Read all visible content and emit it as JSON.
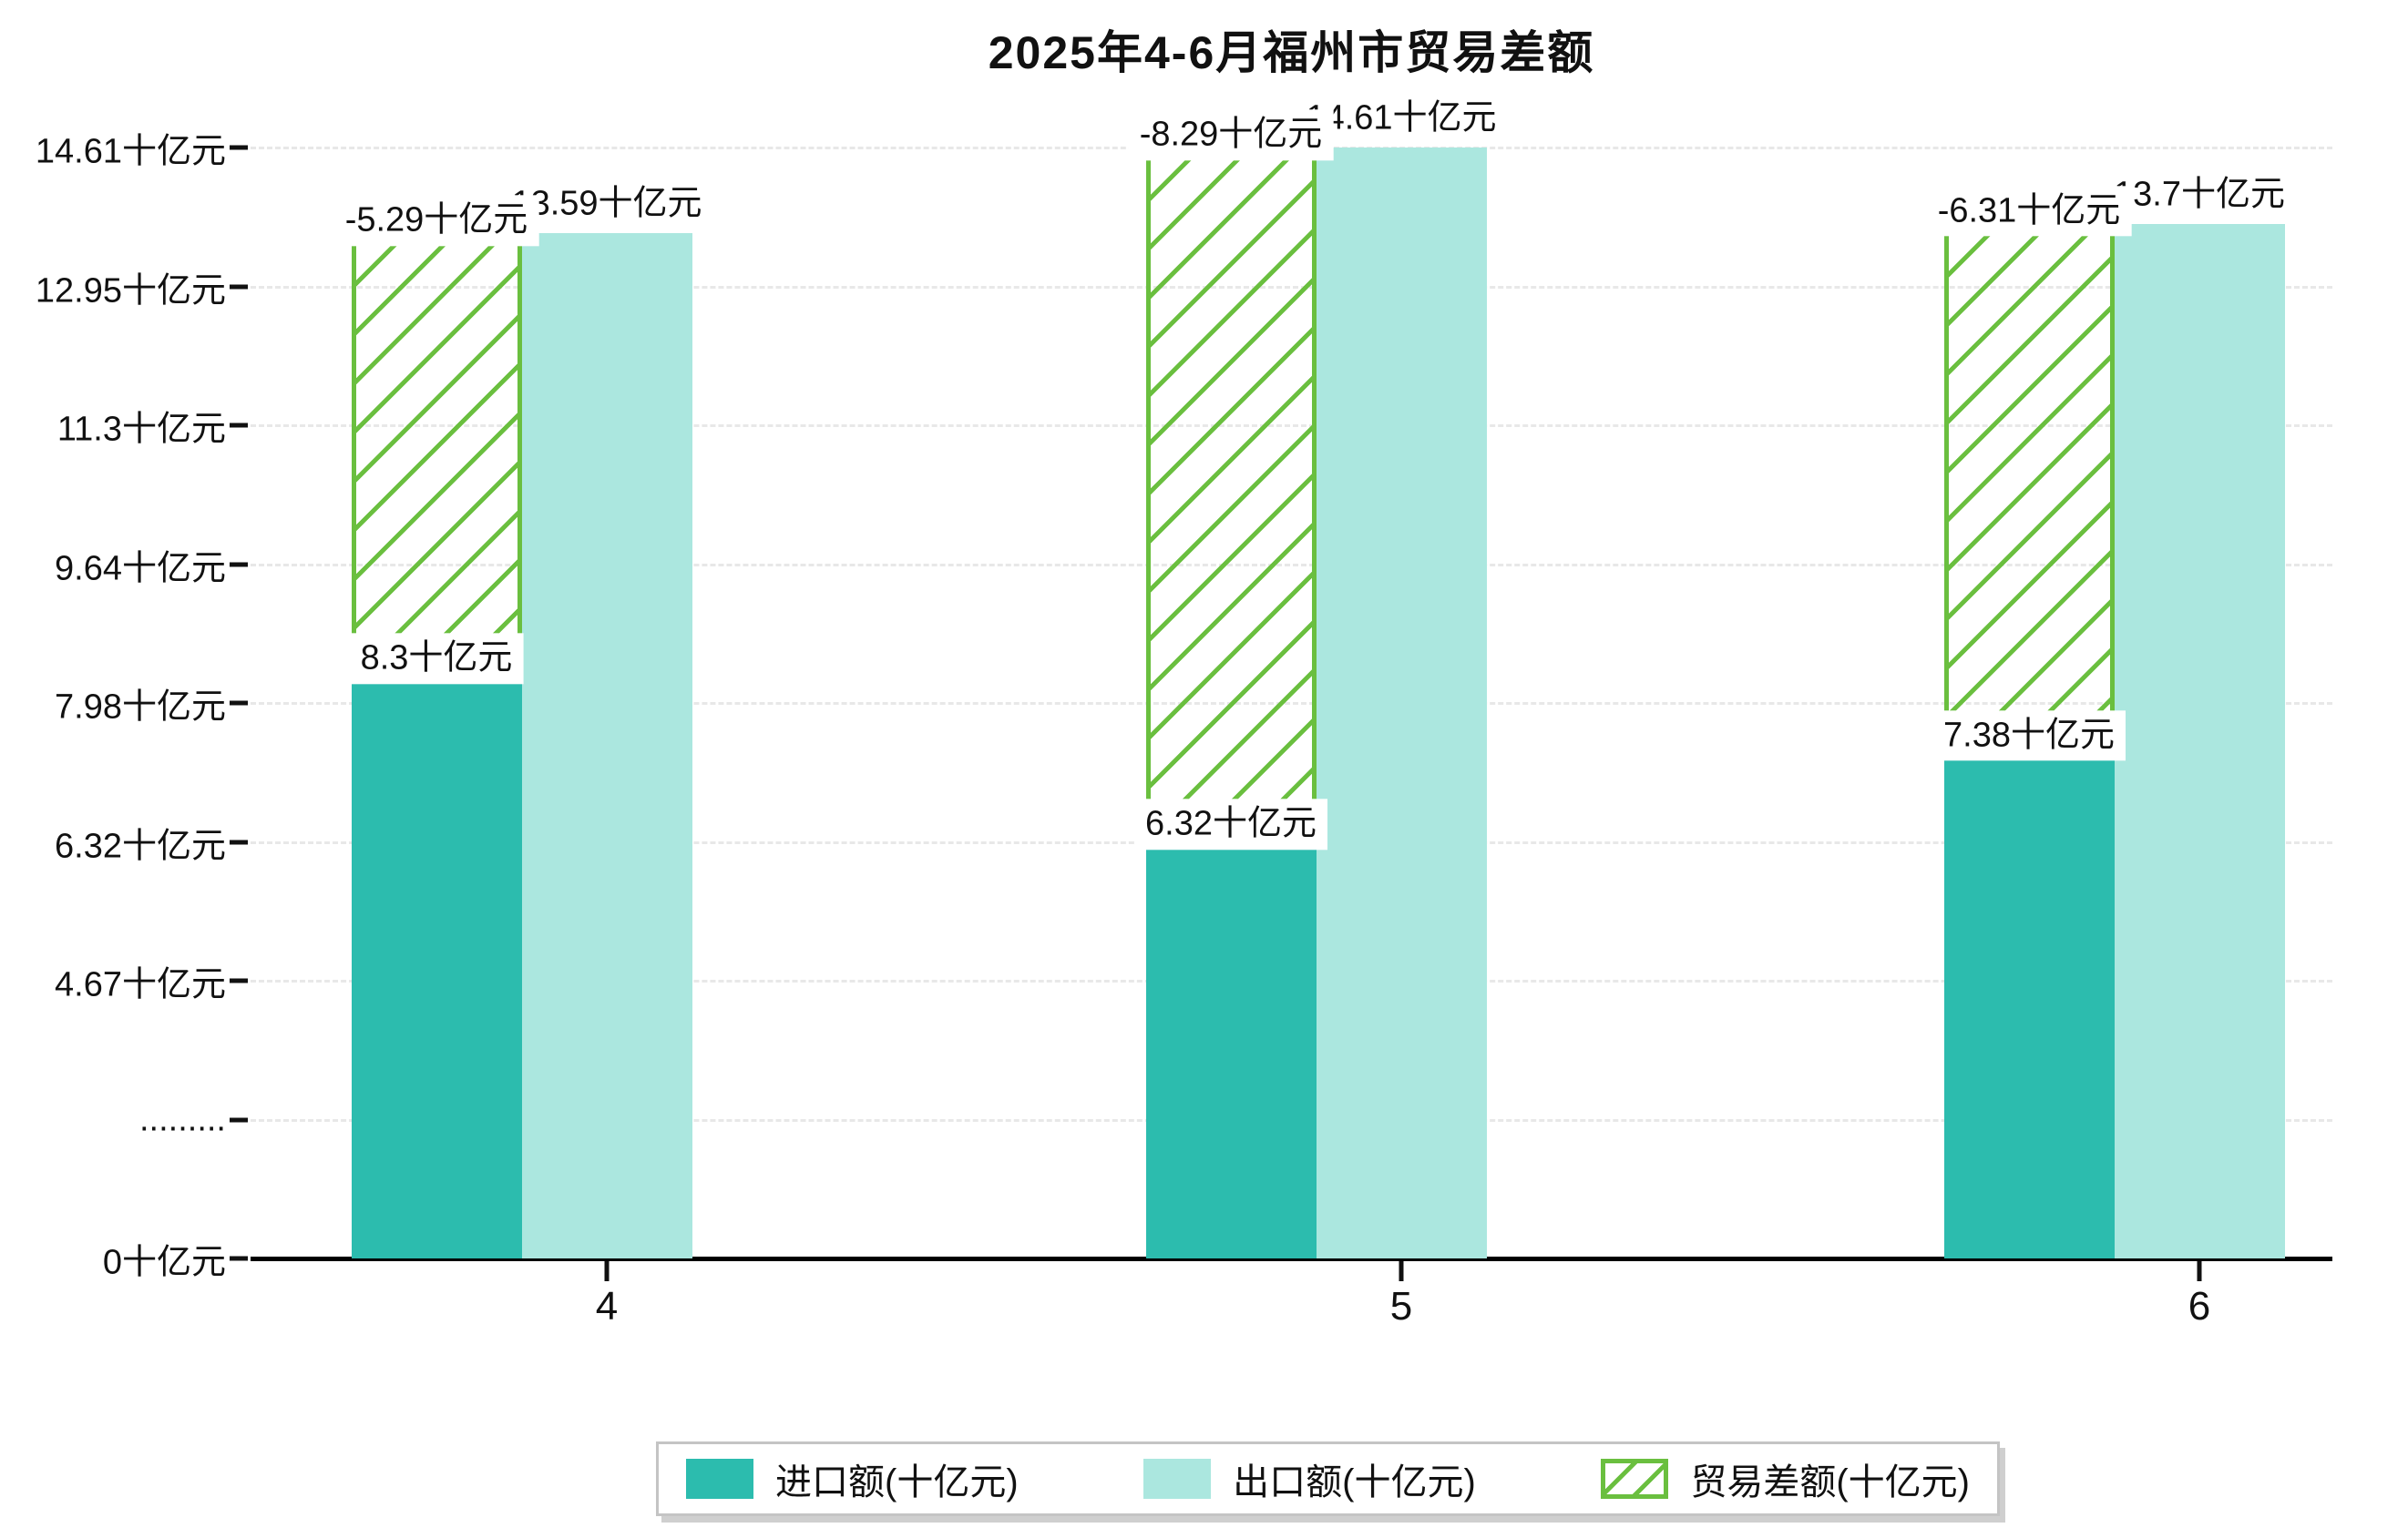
{
  "title": "2025年4-6月福州市贸易差额",
  "chart_data": {
    "type": "bar",
    "title": "2025年4-6月福州市贸易差额",
    "categories": [
      "4",
      "5",
      "6"
    ],
    "series": [
      {
        "name": "进口额(十亿元)",
        "role": "import",
        "values": [
          8.3,
          6.32,
          7.38
        ],
        "labels": [
          "8.3十亿元",
          "6.32十亿元",
          "7.38十亿元"
        ],
        "color": "#2cbcae"
      },
      {
        "name": "出口额(十亿元)",
        "role": "export",
        "values": [
          13.59,
          14.61,
          13.7
        ],
        "labels": [
          "13.59十亿元",
          "14.61十亿元",
          "13.7十亿元"
        ],
        "color": "#abe7df"
      },
      {
        "name": "贸易差额(十亿元)",
        "role": "trade-balance",
        "values": [
          -5.29,
          -8.29,
          -6.31
        ],
        "labels": [
          "-5.29十亿元",
          "-8.29十亿元",
          "-6.31十亿元"
        ],
        "color": "#6abf3f",
        "style": "hatched",
        "note": "drawn as hatched span from import top to export top"
      }
    ],
    "y_axis": {
      "unit": "十亿元",
      "broken_axis": true,
      "break_note": "compressed region between 0 and 4.67 marked with dotted tick",
      "ticks": [
        {
          "label": "0十亿元",
          "value": 0
        },
        {
          "label": ".........",
          "value": null,
          "break": true
        },
        {
          "label": "4.67十亿元",
          "value": 4.67
        },
        {
          "label": "6.32十亿元",
          "value": 6.32
        },
        {
          "label": "7.98十亿元",
          "value": 7.98
        },
        {
          "label": "9.64十亿元",
          "value": 9.64
        },
        {
          "label": "11.3十亿元",
          "value": 11.3
        },
        {
          "label": "12.95十亿元",
          "value": 12.95
        },
        {
          "label": "14.61十亿元",
          "value": 14.61
        }
      ]
    },
    "x_axis": {
      "tick_labels": [
        "4",
        "5",
        "6"
      ]
    },
    "legend": {
      "position": "bottom",
      "entries": [
        "进口额(十亿元)",
        "出口额(十亿元)",
        "贸易差额(十亿元)"
      ]
    },
    "grid": "horizontal dashed",
    "colors": {
      "import": "#2cbcae",
      "export": "#abe7df",
      "balance_hatch": "#6abf3f",
      "gridline": "#e8e8e8",
      "axis": "#000000",
      "label_background": "#ffffff"
    }
  }
}
